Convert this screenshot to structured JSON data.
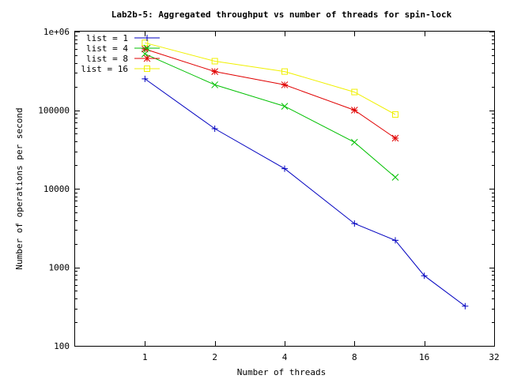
{
  "chart_data": {
    "type": "line",
    "title": "Lab2b-5: Aggregated throughput vs number of threads for spin-lock",
    "xlabel": "Number of threads",
    "ylabel": "Number of operations per second",
    "x_scale": "log2",
    "y_scale": "log10",
    "xlim": [
      0.5,
      32
    ],
    "ylim": [
      100,
      1000000
    ],
    "x_ticks": [
      1,
      2,
      4,
      8,
      16,
      32
    ],
    "x_tick_labels": [
      "1",
      "2",
      "4",
      "8",
      "16",
      "32"
    ],
    "y_ticks": [
      100,
      1000,
      10000,
      100000,
      1000000
    ],
    "y_tick_labels": [
      "100",
      "1000",
      "10000",
      "100000",
      "1e+06"
    ],
    "legend_position": "top-left",
    "grid": false,
    "series": [
      {
        "name": "list = 1",
        "color": "#0000c0",
        "marker": "plus",
        "points": [
          [
            1,
            250000
          ],
          [
            2,
            58000
          ],
          [
            4,
            18000
          ],
          [
            8,
            3600
          ],
          [
            12,
            2200
          ],
          [
            16,
            780
          ],
          [
            24,
            320
          ]
        ]
      },
      {
        "name": "list = 4",
        "color": "#00c000",
        "marker": "cross",
        "points": [
          [
            1,
            520000
          ],
          [
            2,
            210000
          ],
          [
            4,
            112000
          ],
          [
            8,
            39000
          ],
          [
            12,
            14000
          ]
        ]
      },
      {
        "name": "list = 8",
        "color": "#e00000",
        "marker": "star",
        "points": [
          [
            1,
            600000
          ],
          [
            2,
            310000
          ],
          [
            4,
            210000
          ],
          [
            8,
            100000
          ],
          [
            12,
            44000
          ]
        ]
      },
      {
        "name": "list = 16",
        "color": "#f0f000",
        "marker": "square",
        "points": [
          [
            1,
            720000
          ],
          [
            2,
            420000
          ],
          [
            4,
            310000
          ],
          [
            8,
            170000
          ],
          [
            12,
            88000
          ]
        ]
      }
    ]
  }
}
